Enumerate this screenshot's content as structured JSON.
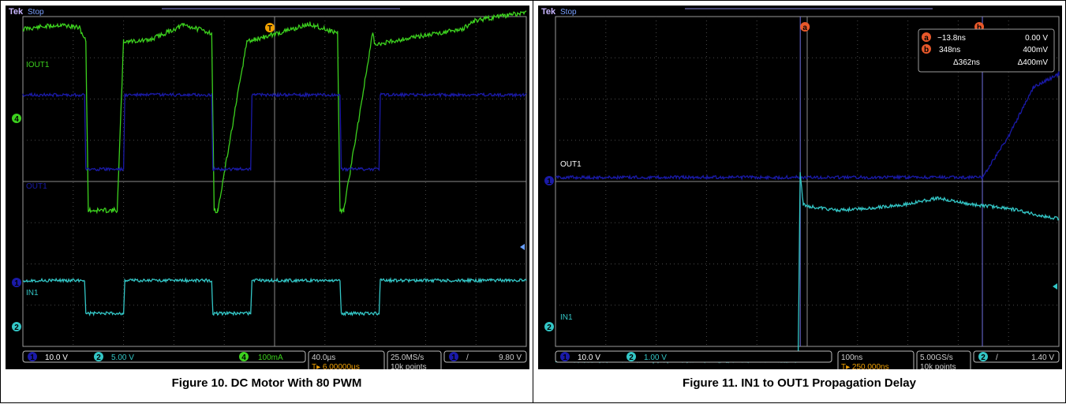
{
  "figures": [
    {
      "caption": "Figure 10. DC Motor With 80 PWM",
      "brand": "Tek",
      "status": "Stop",
      "trace_labels": {
        "out1_current": "IOUT1",
        "out1": "OUT1",
        "in1": "IN1"
      },
      "channel_markers": {
        "ch4": "4",
        "ch1": "1",
        "ch2": "2"
      },
      "trigger_marker": "T",
      "bottom_bar": {
        "ch1_num": "1",
        "ch1_scale": "10.0 V",
        "ch2_num": "2",
        "ch2_scale": "5.00 V",
        "ch4_num": "4",
        "ch4_scale": "100mA",
        "timebase": "40.0µs",
        "trigger_pos": "6.00000µs",
        "sample_rate": "25.0MS/s",
        "record_length": "10k points",
        "trig_ch": "1",
        "trig_slope": "/",
        "trig_level": "9.80 V"
      },
      "colors": {
        "ch1": "#1a1aa8",
        "ch2": "#33c6c6",
        "ch4": "#3cd11e",
        "accent": "#f0a000"
      }
    },
    {
      "caption": "Figure 11. IN1 to OUT1 Propagation Delay",
      "brand": "Tek",
      "status": "Stop",
      "trace_labels": {
        "out1": "OUT1",
        "in1": "IN1"
      },
      "channel_markers": {
        "ch1": "1",
        "ch2": "2"
      },
      "cursor_labels": {
        "a": "a",
        "b": "b"
      },
      "cursor_readout": {
        "a_time": "−13.8ns",
        "a_value": "0.00 V",
        "b_time": "348ns",
        "b_value": "400mV",
        "delta_time": "Δ362ns",
        "delta_value": "Δ400mV"
      },
      "bottom_bar": {
        "ch1_num": "1",
        "ch1_scale": "10.0 V",
        "ch2_num": "2",
        "ch2_scale": "1.00 V",
        "timebase": "100ns",
        "trigger_pos": "250.000ns",
        "sample_rate": "5.00GS/s",
        "record_length": "10k points",
        "trig_ch": "2",
        "trig_slope": "/",
        "trig_level": "1.40 V"
      },
      "colors": {
        "ch1": "#1a1aa8",
        "ch2": "#33c6c6",
        "cursor": "#7070e0",
        "accent": "#f0a000"
      }
    }
  ],
  "chart_data": [
    {
      "type": "line",
      "title": "Figure 10. DC Motor With 80 PWM",
      "xlabel": "",
      "ylabel": "",
      "x_unit": "µs",
      "x_range": [
        -200,
        200
      ],
      "grid": true,
      "series": [
        {
          "name": "IOUT1",
          "channel": 4,
          "x": [
            -200,
            -170,
            -155,
            -150,
            -148,
            -125,
            -120,
            -100,
            -72,
            -50,
            -48,
            -45,
            -22,
            -18,
            0,
            28,
            50,
            52,
            55,
            78,
            80,
            92,
            120,
            150,
            158,
            200
          ],
          "values": [
            0.9,
            1.0,
            0.93,
            0.6,
            -3.5,
            -3.5,
            0.6,
            0.62,
            1.0,
            0.8,
            -3.5,
            -3.5,
            0.6,
            0.62,
            0.77,
            1.02,
            0.8,
            -3.5,
            -3.5,
            0.8,
            0.5,
            0.6,
            0.75,
            0.9,
            1.1,
            1.3
          ]
        },
        {
          "name": "OUT1",
          "channel": 1,
          "x": [
            -200,
            -151,
            -150,
            -120,
            -119,
            -50,
            -49,
            -19,
            -18,
            52,
            53,
            83,
            84,
            200
          ],
          "values": [
            2.1,
            2.1,
            0.3,
            0.3,
            2.1,
            2.1,
            0.3,
            0.3,
            2.1,
            2.1,
            0.3,
            0.3,
            2.1,
            2.1
          ]
        },
        {
          "name": "IN1",
          "channel": 2,
          "x": [
            -200,
            -151,
            -150,
            -120,
            -119,
            -50,
            -49,
            -19,
            -18,
            52,
            53,
            83,
            84,
            200
          ],
          "values": [
            -1.3,
            -1.3,
            -2.1,
            -2.1,
            -1.3,
            -1.3,
            -2.1,
            -2.1,
            -1.3,
            -1.3,
            -2.1,
            -2.1,
            -1.3,
            -1.3
          ]
        }
      ]
    },
    {
      "type": "line",
      "title": "Figure 11. IN1 to OUT1 Propagation Delay",
      "xlabel": "",
      "ylabel": "",
      "x_unit": "ns",
      "x_range": [
        -500,
        500
      ],
      "grid": true,
      "cursors": {
        "a": -13.8,
        "b": 348
      },
      "series": [
        {
          "name": "OUT1",
          "channel": 1,
          "x": [
            -500,
            -13.8,
            348,
            400,
            450,
            500,
            500
          ],
          "values": [
            0.1,
            0.1,
            0.1,
            1.1,
            2.3,
            2.6,
            2.7
          ]
        },
        {
          "name": "IN1",
          "channel": 2,
          "x": [
            -500,
            -25,
            -18,
            -14,
            -8,
            0,
            60,
            120,
            200,
            260,
            320,
            400,
            470,
            500
          ],
          "values": [
            -4.35,
            -4.35,
            -4.35,
            0.2,
            -0.55,
            -0.6,
            -0.7,
            -0.65,
            -0.55,
            -0.4,
            -0.55,
            -0.65,
            -0.85,
            -0.9
          ]
        }
      ]
    }
  ]
}
